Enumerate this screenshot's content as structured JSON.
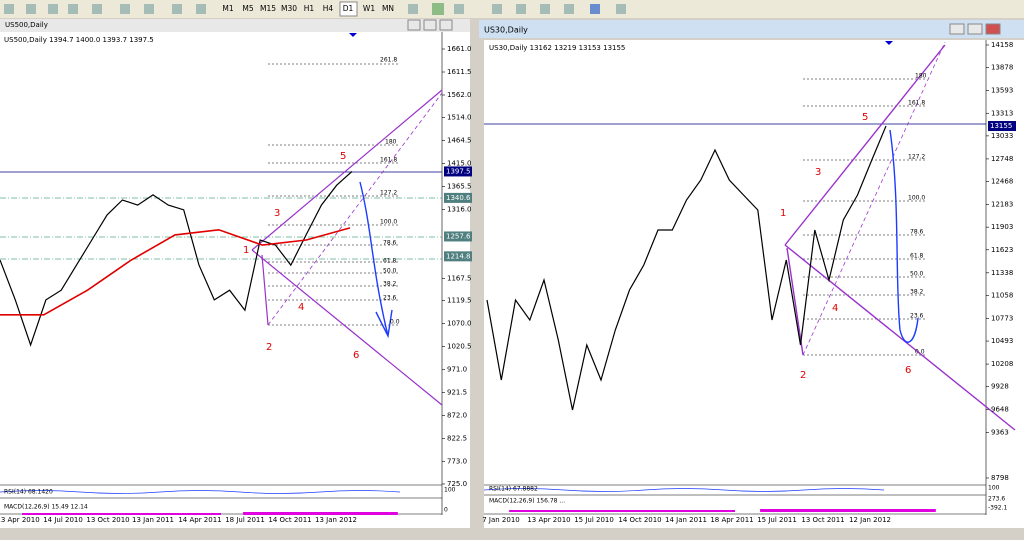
{
  "toolbar": {
    "timeframes": [
      "M1",
      "M5",
      "M15",
      "M30",
      "H1",
      "H4",
      "D1",
      "W1",
      "MN"
    ]
  },
  "windows": [
    {
      "title": "US500,Daily",
      "header": "US500,Daily  1394.7 1400.0 1393.7 1397.5",
      "price_ticks": [
        {
          "value": 1661,
          "label": "1661.0"
        },
        {
          "value": 1611.5,
          "label": "1611.5"
        },
        {
          "value": 1562,
          "label": "1562.0"
        },
        {
          "value": 1514,
          "label": "1514.0"
        },
        {
          "value": 1464.5,
          "label": "1464.5"
        },
        {
          "value": 1415,
          "label": "1415.0"
        },
        {
          "value": 1365.5,
          "label": "1365.5"
        },
        {
          "value": 1316,
          "label": "1316.0"
        },
        {
          "value": 1167.5,
          "label": "1167.5"
        },
        {
          "value": 1119.5,
          "label": "1119.5"
        },
        {
          "value": 1070,
          "label": "1070.0"
        },
        {
          "value": 1020.5,
          "label": "1020.5"
        },
        {
          "value": 971,
          "label": "971.0"
        },
        {
          "value": 921.5,
          "label": "921.5"
        },
        {
          "value": 872,
          "label": "872.0"
        },
        {
          "value": 822.5,
          "label": "822.5"
        },
        {
          "value": 773,
          "label": "773.0"
        },
        {
          "value": 725,
          "label": "725.0"
        }
      ],
      "price_tags": [
        {
          "value": 1397.5,
          "label": "1397.5"
        },
        {
          "value": 1340.6,
          "label": "1340.6"
        },
        {
          "value": 1257.6,
          "label": "1257.6"
        },
        {
          "value": 1214.8,
          "label": "1214.8"
        }
      ],
      "dates": [
        "13 Apr 2010",
        "14 Jul 2010",
        "13 Oct 2010",
        "13 Jan 2011",
        "14 Apr 2011",
        "18 Jul 2011",
        "14 Oct 2011",
        "13 Jan 2012"
      ],
      "close": [
        1207,
        1121,
        1024,
        1121,
        1142,
        1196,
        1250,
        1304,
        1336,
        1325,
        1347,
        1325,
        1315,
        1196,
        1121,
        1142,
        1099,
        1250,
        1239,
        1196,
        1261,
        1325,
        1368,
        1397.5
      ],
      "ma": [
        1089,
        1089,
        1142,
        1207,
        1261,
        1272,
        1239,
        1250,
        1276
      ],
      "fib_labels": [
        "261.8",
        "180",
        "161.8",
        "127.2",
        "100.0",
        "78.6",
        "61.8",
        "50.0",
        "38.2",
        "23.6",
        "0.0"
      ],
      "waves": [
        "1",
        "2",
        "3",
        "4",
        "5",
        "6"
      ],
      "rsi_label": "RSI(14) 68.1420",
      "macd_label": "MACD(12,26,9) 15.49 12.14",
      "indicator_ticks": [
        "100",
        "0"
      ]
    },
    {
      "title": "US30,Daily",
      "header": "US30,Daily  13162 13219 13153 13155",
      "price_ticks": [
        14158,
        13878,
        13593,
        13313,
        13033,
        12748,
        12468,
        12183,
        11903,
        11623,
        11338,
        11058,
        10773,
        10493,
        10208,
        9928,
        9648,
        9363,
        8798
      ],
      "price_tags": [
        13155
      ],
      "dates": [
        "7 Jan 2010",
        "13 Apr 2010",
        "15 Jul 2010",
        "14 Oct 2010",
        "14 Jan 2011",
        "18 Apr 2011",
        "15 Jul 2011",
        "13 Oct 2011",
        "12 Jan 2012"
      ],
      "close": [
        11001,
        10011,
        11001,
        10754,
        11249,
        10506,
        9640,
        10444,
        10011,
        10630,
        11125,
        11435,
        11868,
        11868,
        12239,
        12487,
        12858,
        12487,
        12301,
        12115,
        10754,
        11497,
        10444,
        11868,
        11249,
        11992,
        12301,
        12734,
        13155
      ],
      "fib_labels": [
        "180",
        "161.8",
        "127.2",
        "100.0",
        "78.6",
        "61.8",
        "50.0",
        "38.2",
        "23.6",
        "0.0"
      ],
      "waves": [
        "1",
        "2",
        "3",
        "4",
        "5",
        "6"
      ],
      "rsi_label": "RSI(14) 67.8882",
      "macd_label": "MACD(12,26,9) 156.78 ...",
      "indicator_ticks": [
        "100",
        "273.6",
        "-392.1"
      ]
    }
  ]
}
